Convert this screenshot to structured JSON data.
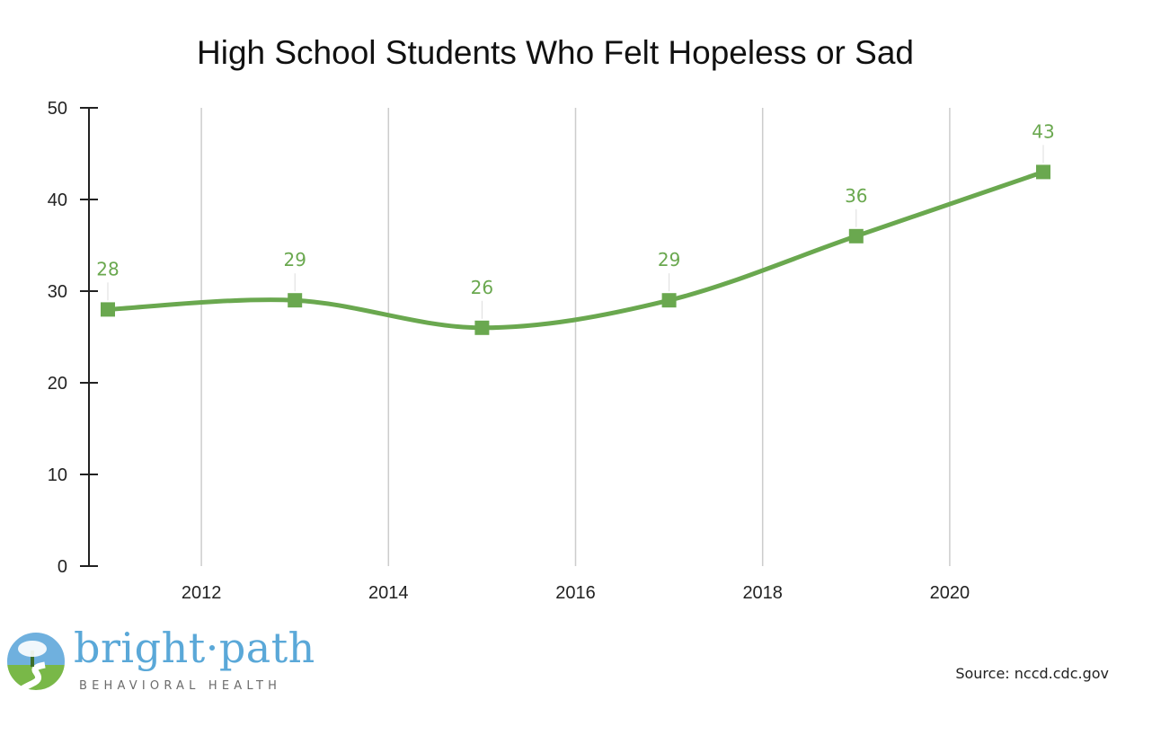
{
  "chart_data": {
    "type": "line",
    "title": "High School Students Who Felt Hopeless or Sad",
    "xlabel": "",
    "ylabel": "",
    "x": [
      2011,
      2013,
      2015,
      2017,
      2019,
      2021
    ],
    "values": [
      28,
      29,
      26,
      29,
      36,
      43
    ],
    "data_labels": [
      "28",
      "29",
      "26",
      "29",
      "36",
      "43"
    ],
    "x_ticks": [
      2012,
      2014,
      2016,
      2018,
      2020
    ],
    "x_tick_labels": [
      "2012",
      "2014",
      "2016",
      "2018",
      "2020"
    ],
    "y_ticks": [
      0,
      10,
      20,
      30,
      40,
      50
    ],
    "y_tick_labels": [
      "0",
      "10",
      "20",
      "30",
      "40",
      "50"
    ],
    "xlim": [
      2011,
      2021
    ],
    "ylim": [
      0,
      50
    ],
    "grid": "vertical",
    "line_style": "smooth",
    "marker": "square",
    "series_color": "#6aa84f"
  },
  "branding": {
    "logo_name": "bright·path",
    "logo_tagline": "BEHAVIORAL HEALTH"
  },
  "source_note": "Source: nccd.cdc.gov"
}
